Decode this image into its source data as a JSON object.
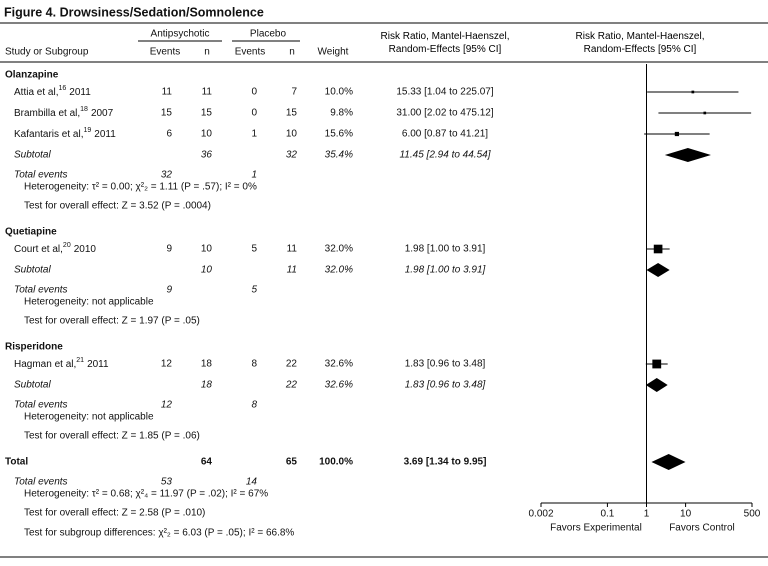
{
  "chart_data": {
    "type": "forest",
    "title": "Figure 4. Drowsiness/Sedation/Somnolence",
    "headers": {
      "group_a": "Antipsychotic",
      "group_p": "Placebo",
      "study": "Study or Subgroup",
      "events": "Events",
      "n": "n",
      "weight": "Weight",
      "ci": "Risk Ratio, Mantel-Haenszel, Random-Effects [95% CI]",
      "plot": "Risk Ratio, Mantel-Haenszel, Random-Effects [95% CI]"
    },
    "groups": [
      {
        "name": "Olanzapine",
        "studies": [
          {
            "name": "Attia et al,",
            "ref": "16",
            "year": "2011",
            "events_a": 11,
            "n_a": 11,
            "events_p": 0,
            "n_p": 7,
            "weight": 10.0,
            "weight_label": "10.0%",
            "ci_label": "15.33 [1.04 to 225.07]",
            "rr": 15.33,
            "ci_low": 1.04,
            "ci_high": 225.07
          },
          {
            "name": "Brambilla et al,",
            "ref": "18",
            "year": "2007",
            "events_a": 15,
            "n_a": 15,
            "events_p": 0,
            "n_p": 15,
            "weight": 9.8,
            "weight_label": "9.8%",
            "ci_label": "31.00 [2.02 to 475.12]",
            "rr": 31.0,
            "ci_low": 2.02,
            "ci_high": 475.12
          },
          {
            "name": "Kafantaris et al,",
            "ref": "19",
            "year": "2011",
            "events_a": 6,
            "n_a": 10,
            "events_p": 1,
            "n_p": 10,
            "weight": 15.6,
            "weight_label": "15.6%",
            "ci_label": "6.00 [0.87 to 41.21]",
            "rr": 6.0,
            "ci_low": 0.87,
            "ci_high": 41.21
          }
        ],
        "subtotal": {
          "label": "Subtotal",
          "n_a": 36,
          "n_p": 32,
          "weight_label": "35.4%",
          "ci_label": "11.45 [2.94 to 44.54]",
          "rr": 11.45,
          "ci_low": 2.94,
          "ci_high": 44.54
        },
        "total_events_label": "Total events",
        "total_events_a": 32,
        "total_events_p": 1,
        "heterogeneity": "Heterogeneity: τ² = 0.00; χ²₂ = 1.11 (P = .57); I² = 0%",
        "overall": "Test for overall effect: Z = 3.52 (P = .0004)"
      },
      {
        "name": "Quetiapine",
        "studies": [
          {
            "name": "Court et al,",
            "ref": "20",
            "year": "2010",
            "events_a": 9,
            "n_a": 10,
            "events_p": 5,
            "n_p": 11,
            "weight": 32.0,
            "weight_label": "32.0%",
            "ci_label": "1.98 [1.00 to 3.91]",
            "rr": 1.98,
            "ci_low": 1.0,
            "ci_high": 3.91
          }
        ],
        "subtotal": {
          "label": "Subtotal",
          "n_a": 10,
          "n_p": 11,
          "weight_label": "32.0%",
          "ci_label": "1.98 [1.00 to 3.91]",
          "rr": 1.98,
          "ci_low": 1.0,
          "ci_high": 3.91
        },
        "total_events_label": "Total events",
        "total_events_a": 9,
        "total_events_p": 5,
        "heterogeneity": "Heterogeneity: not applicable",
        "overall": "Test for overall effect: Z = 1.97 (P = .05)"
      },
      {
        "name": "Risperidone",
        "studies": [
          {
            "name": "Hagman et al,",
            "ref": "21",
            "year": "2011",
            "events_a": 12,
            "n_a": 18,
            "events_p": 8,
            "n_p": 22,
            "weight": 32.6,
            "weight_label": "32.6%",
            "ci_label": "1.83 [0.96 to 3.48]",
            "rr": 1.83,
            "ci_low": 0.96,
            "ci_high": 3.48
          }
        ],
        "subtotal": {
          "label": "Subtotal",
          "n_a": 18,
          "n_p": 22,
          "weight_label": "32.6%",
          "ci_label": "1.83 [0.96 to 3.48]",
          "rr": 1.83,
          "ci_low": 0.96,
          "ci_high": 3.48
        },
        "total_events_label": "Total events",
        "total_events_a": 12,
        "total_events_p": 8,
        "heterogeneity": "Heterogeneity: not applicable",
        "overall": "Test for overall effect: Z = 1.85 (P = .06)"
      }
    ],
    "total": {
      "label": "Total",
      "n_a": 64,
      "n_p": 65,
      "weight_label": "100.0%",
      "ci_label": "3.69 [1.34 to 9.95]",
      "rr": 3.69,
      "ci_low": 1.34,
      "ci_high": 9.95,
      "total_events_label": "Total events",
      "total_events_a": 53,
      "total_events_p": 14,
      "heterogeneity": "Heterogeneity: τ² = 0.68; χ²₄ = 11.97 (P = .02); I² = 67%",
      "overall": "Test for overall effect: Z = 2.58 (P = .010)",
      "subgroup": "Test for subgroup differences: χ²₂ = 6.03 (P = .05); I² = 66.8%"
    },
    "log_x": true,
    "xlim": [
      0.002,
      500
    ],
    "xticks": [
      0.002,
      0.1,
      1,
      10,
      500
    ],
    "favors_left": "Favors Experimental",
    "favors_right": "Favors Control"
  }
}
